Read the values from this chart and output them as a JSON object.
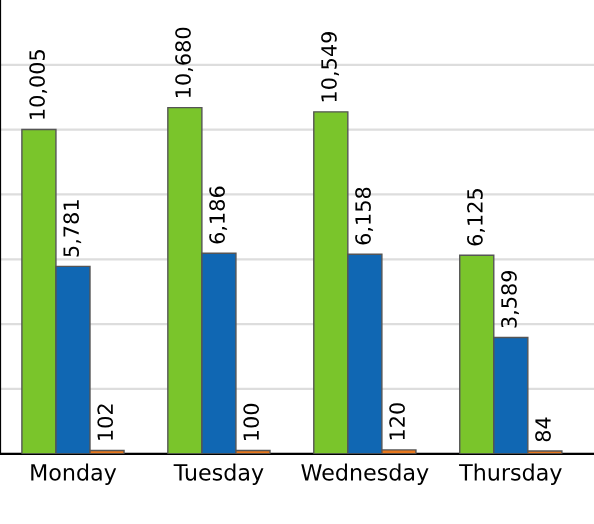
{
  "chart_data": {
    "type": "bar",
    "categories": [
      "Monday",
      "Tuesday",
      "Wednesday",
      "Thursday"
    ],
    "series": [
      {
        "color": "#7ac52b",
        "values": [
          10005,
          10680,
          10549,
          6125
        ],
        "value_labels": [
          "10,005",
          "10,680",
          "10,549",
          "6,125"
        ]
      },
      {
        "color": "#1067b3",
        "values": [
          5781,
          6186,
          6158,
          3589
        ],
        "value_labels": [
          "5,781",
          "6,186",
          "6,158",
          "3,589"
        ]
      },
      {
        "color": "#e8781e",
        "values": [
          102,
          100,
          120,
          84
        ],
        "value_labels": [
          "102",
          "100",
          "120",
          "84"
        ]
      }
    ],
    "ylim": [
      0,
      14000
    ],
    "yticks": [
      {
        "value": 0,
        "label": null
      },
      {
        "value": 2000,
        "label": null
      },
      {
        "value": 4000,
        "label": null
      },
      {
        "value": 6000,
        "label": null
      },
      {
        "value": 8000,
        "label": null
      },
      {
        "value": 10000,
        "label": null
      },
      {
        "value": 12000,
        "label": null
      }
    ],
    "grid": "y",
    "tick_labels": "x",
    "legend": false
  }
}
